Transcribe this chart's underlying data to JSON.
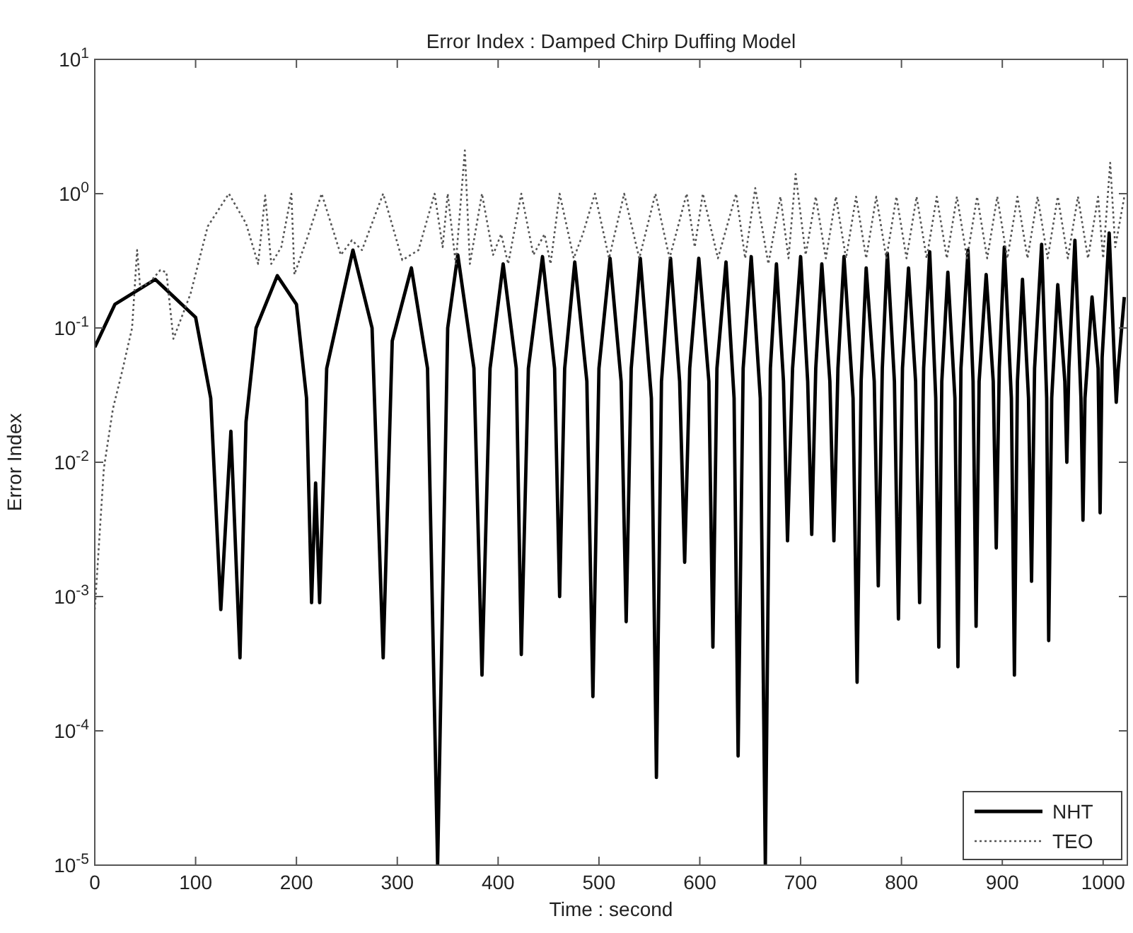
{
  "chart_data": {
    "type": "line",
    "title": "Error Index : Damped Chirp Duffing Model",
    "xlabel": "Time : second",
    "ylabel": "Error Index",
    "log": "y",
    "xlim": [
      0,
      1024
    ],
    "ylim": [
      1e-05,
      10
    ],
    "xticks": [
      0,
      100,
      200,
      300,
      400,
      500,
      600,
      700,
      800,
      900,
      1000
    ],
    "yticks": [
      {
        "value": 1e-05,
        "label": "10$^{-5}$"
      },
      {
        "value": 0.0001,
        "label": "10$^{-4}$"
      },
      {
        "value": 0.001,
        "label": "10$^{-3}$"
      },
      {
        "value": 0.01,
        "label": "10$^{-2}$"
      },
      {
        "value": 0.1,
        "label": "10$^{-1}$"
      },
      {
        "value": 1,
        "label": "10$^{0}$"
      },
      {
        "value": 10,
        "label": "10$^{1}$"
      }
    ],
    "grid": false,
    "legend": "bottom right",
    "series": [
      {
        "name": "NHT",
        "color": "#000000",
        "line_style": "solid",
        "x": [
          0,
          20,
          60,
          100,
          115,
          125,
          135,
          144,
          150,
          160,
          181,
          200,
          210,
          215,
          219,
          223,
          230,
          256,
          275,
          286,
          295,
          314,
          330,
          340,
          350,
          360,
          376,
          384,
          392,
          405,
          418,
          423,
          430,
          444,
          456,
          461,
          466,
          476,
          488,
          494,
          500,
          511,
          522,
          527,
          532,
          541,
          552,
          557,
          562,
          571,
          580,
          585,
          590,
          599,
          609,
          613,
          617,
          626,
          634,
          638,
          643,
          651,
          660,
          665,
          670,
          676,
          683,
          687,
          692,
          700,
          707,
          711,
          715,
          721,
          729,
          733,
          737,
          743,
          752,
          756,
          760,
          765,
          773,
          777,
          781,
          786,
          793,
          797,
          801,
          807,
          814,
          818,
          822,
          828,
          834,
          837,
          840,
          846,
          853,
          856,
          859,
          866,
          871,
          874,
          877,
          884,
          891,
          894,
          897,
          902,
          909,
          912,
          915,
          920,
          926,
          929,
          932,
          939,
          944,
          946,
          949,
          955,
          962,
          964,
          966,
          972,
          978,
          980,
          982,
          989,
          995,
          997,
          999,
          1006,
          1011,
          1013,
          1015,
          1021
        ],
        "values": [
          0.072,
          0.15,
          0.23,
          0.12,
          0.03,
          0.0008,
          0.017,
          0.00035,
          0.02,
          0.1,
          0.245,
          0.15,
          0.03,
          0.0009,
          0.007,
          0.0009,
          0.05,
          0.38,
          0.1,
          0.00035,
          0.08,
          0.28,
          0.05,
          1e-05,
          0.1,
          0.35,
          0.05,
          0.00026,
          0.05,
          0.3,
          0.05,
          0.00037,
          0.05,
          0.34,
          0.05,
          0.001,
          0.05,
          0.31,
          0.04,
          0.00018,
          0.05,
          0.33,
          0.04,
          0.00065,
          0.05,
          0.33,
          0.03,
          4.5e-05,
          0.04,
          0.33,
          0.04,
          0.0018,
          0.05,
          0.33,
          0.04,
          0.00042,
          0.05,
          0.31,
          0.03,
          6.5e-05,
          0.05,
          0.34,
          0.03,
          1e-05,
          0.05,
          0.3,
          0.04,
          0.0026,
          0.05,
          0.34,
          0.04,
          0.0029,
          0.05,
          0.3,
          0.04,
          0.0026,
          0.05,
          0.34,
          0.03,
          0.00023,
          0.04,
          0.28,
          0.04,
          0.0012,
          0.05,
          0.36,
          0.04,
          0.00068,
          0.05,
          0.28,
          0.04,
          0.0009,
          0.05,
          0.37,
          0.03,
          0.00042,
          0.04,
          0.26,
          0.03,
          0.0003,
          0.05,
          0.38,
          0.04,
          0.0006,
          0.04,
          0.25,
          0.04,
          0.0023,
          0.05,
          0.4,
          0.03,
          0.00026,
          0.04,
          0.23,
          0.03,
          0.0013,
          0.05,
          0.42,
          0.03,
          0.00047,
          0.03,
          0.21,
          0.04,
          0.01,
          0.05,
          0.45,
          0.03,
          0.0037,
          0.03,
          0.17,
          0.05,
          0.0042,
          0.06,
          0.51,
          0.06,
          0.028,
          0.05,
          0.17
        ]
      },
      {
        "name": "TEO",
        "color": "#555555",
        "line_style": "dotted",
        "x": [
          0,
          9,
          18,
          27,
          37,
          42,
          45,
          55,
          65,
          71,
          78,
          95,
          112,
          133,
          150,
          162,
          169,
          175,
          185,
          195,
          198,
          212,
          225,
          244,
          255,
          265,
          286,
          305,
          321,
          337,
          345,
          350,
          358,
          367,
          372,
          384,
          395,
          403,
          410,
          423,
          435,
          446,
          452,
          461,
          475,
          484,
          496,
          510,
          525,
          540,
          556,
          570,
          587,
          595,
          603,
          618,
          636,
          645,
          655,
          668,
          680,
          688,
          695,
          705,
          715,
          725,
          735,
          745,
          755,
          765,
          775,
          785,
          795,
          805,
          815,
          825,
          835,
          845,
          855,
          865,
          875,
          885,
          895,
          905,
          915,
          925,
          935,
          945,
          955,
          965,
          975,
          985,
          995,
          1000,
          1007,
          1012,
          1021
        ],
        "values": [
          0.0008,
          0.009,
          0.025,
          0.047,
          0.1,
          0.38,
          0.2,
          0.22,
          0.27,
          0.26,
          0.083,
          0.18,
          0.57,
          1.0,
          0.6,
          0.3,
          0.97,
          0.3,
          0.4,
          1.0,
          0.25,
          0.5,
          1.0,
          0.35,
          0.45,
          0.38,
          1.0,
          0.32,
          0.38,
          1.0,
          0.4,
          1.0,
          0.3,
          2.1,
          0.3,
          1.0,
          0.35,
          0.5,
          0.3,
          1.0,
          0.35,
          0.5,
          0.3,
          1.0,
          0.33,
          0.5,
          1.0,
          0.33,
          1.0,
          0.33,
          1.0,
          0.33,
          1.0,
          0.4,
          1.0,
          0.33,
          1.0,
          0.33,
          1.1,
          0.3,
          0.95,
          0.33,
          1.4,
          0.35,
          0.95,
          0.33,
          0.95,
          0.33,
          0.95,
          0.33,
          0.95,
          0.33,
          0.95,
          0.33,
          0.95,
          0.33,
          0.95,
          0.33,
          0.95,
          0.33,
          0.95,
          0.33,
          0.95,
          0.33,
          0.95,
          0.33,
          0.95,
          0.33,
          0.95,
          0.33,
          0.95,
          0.33,
          0.95,
          0.33,
          1.7,
          0.4,
          0.95
        ]
      }
    ]
  }
}
